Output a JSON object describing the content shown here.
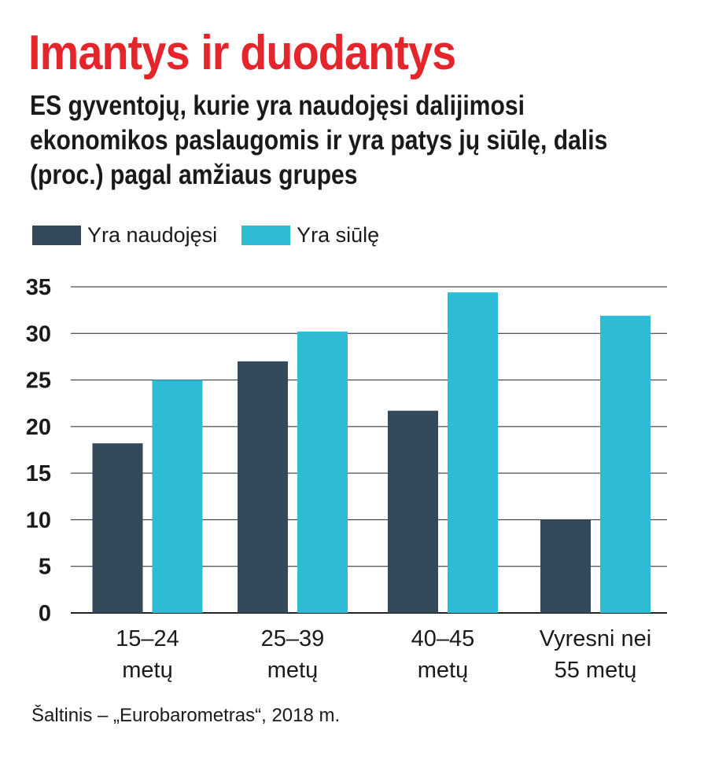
{
  "title": "Imantys ir duodantys",
  "subtitle": "ES gyventojų, kurie yra naudojęsi dalijimosi ekonomikos paslaugomis ir yra patys jų siūlę, dalis (proc.) pagal amžiaus grupes",
  "source": "Šaltinis – „Eurobarometras“, 2018 m.",
  "colors": {
    "title": "#e4262c",
    "series_dark": "#344a5a",
    "series_light": "#2dbbd6",
    "text": "#1a1a1a",
    "grid": "#222222"
  },
  "chart_data": {
    "type": "bar",
    "categories": [
      [
        "15–24",
        "metų"
      ],
      [
        "25–39",
        "metų"
      ],
      [
        "40–45",
        "metų"
      ],
      [
        "Vyresni nei",
        "55 metų"
      ]
    ],
    "series": [
      {
        "name": "Yra naudojęsi",
        "values": [
          18.2,
          27.0,
          21.7,
          10.0
        ]
      },
      {
        "name": "Yra siūlę",
        "values": [
          25.0,
          30.2,
          34.4,
          31.9
        ]
      }
    ],
    "ylim": [
      0,
      35
    ],
    "yticks": [
      0,
      5,
      10,
      15,
      20,
      25,
      30,
      35
    ],
    "grid": true,
    "legend_position": "top-left"
  }
}
